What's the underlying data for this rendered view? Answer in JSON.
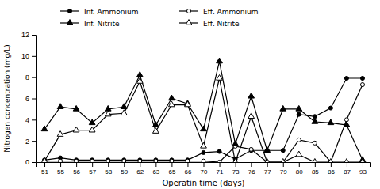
{
  "chart_data": {
    "type": "line",
    "categories": [
      "51",
      "55",
      "56",
      "57",
      "58",
      "59",
      "62",
      "63",
      "65",
      "66",
      "70",
      "71",
      "73",
      "76",
      "77",
      "79",
      "80",
      "85",
      "86",
      "87",
      "93"
    ],
    "series": [
      {
        "name": "Inf. Ammonium",
        "color": "#000000",
        "marker": "filled-circle",
        "line_style": "solid",
        "values": [
          0.2,
          0.4,
          0.2,
          0.2,
          0.2,
          0.2,
          0.2,
          0.2,
          0.2,
          0.2,
          0.9,
          1.0,
          0.3,
          1.1,
          1.1,
          1.1,
          4.5,
          4.3,
          5.1,
          7.9,
          7.9
        ]
      },
      {
        "name": "Eff. Ammonium",
        "color": "#000000",
        "marker": "open-circle",
        "line_style": "solid",
        "values": [
          0.1,
          0.1,
          0.1,
          0.1,
          0.1,
          0.1,
          0.1,
          0.1,
          0.1,
          0.1,
          0.1,
          0.0,
          1.5,
          1.2,
          0.0,
          0.0,
          2.1,
          1.8,
          0.0,
          4.0,
          7.3
        ]
      },
      {
        "name": "Inf. Nitrite",
        "color": "#000000",
        "marker": "filled-triangle",
        "line_style": "solid",
        "values": [
          3.1,
          5.2,
          5.0,
          3.7,
          5.0,
          5.2,
          8.2,
          3.5,
          6.0,
          5.5,
          3.1,
          9.5,
          1.7,
          6.2,
          1.1,
          5.0,
          5.0,
          3.8,
          3.7,
          3.5,
          0.2
        ]
      },
      {
        "name": "Eff. Nitrite",
        "color": "#000000",
        "marker": "open-triangle",
        "line_style": "solid",
        "values": [
          0.1,
          2.6,
          3.0,
          3.0,
          4.5,
          4.6,
          7.6,
          2.9,
          5.4,
          5.4,
          1.5,
          7.9,
          0.0,
          4.3,
          0.0,
          0.0,
          0.7,
          0.0,
          0.0,
          0.0,
          0.0
        ]
      }
    ],
    "xlabel": "Operatin time (days)",
    "ylabel": "Nitrogen concentration (mg/L)",
    "ylim": [
      0,
      12
    ],
    "yticks": [
      0,
      2,
      4,
      6,
      8,
      10,
      12
    ],
    "grid": false,
    "legend": "top"
  }
}
